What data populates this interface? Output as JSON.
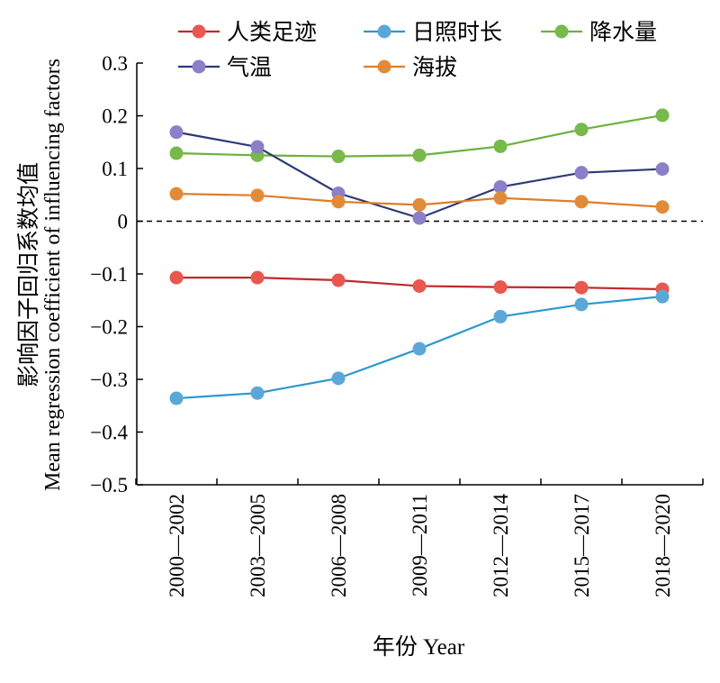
{
  "chart_data": {
    "type": "line",
    "categories": [
      "2000—2002",
      "2003—2005",
      "2006—2008",
      "2009—2011",
      "2012—2014",
      "2015—2017",
      "2018—2020"
    ],
    "xlabel": "年份 Year",
    "ylabel_cn": "影响因子回归系数均值",
    "ylabel_en": "Mean regression coefficient of influencing factors",
    "ylim": [
      -0.5,
      0.3
    ],
    "yticks": [
      0.3,
      0.2,
      0.1,
      0,
      -0.1,
      -0.2,
      -0.3,
      -0.4,
      -0.5
    ],
    "ytick_labels": [
      "0.3",
      "0.2",
      "0.1",
      "0",
      "−0.1",
      "−0.2",
      "−0.3",
      "−0.4",
      "−0.5"
    ],
    "reference_line": {
      "y": 0,
      "style": "dashed"
    },
    "legend_position": "top",
    "grid": false,
    "series": [
      {
        "name": "人类足迹",
        "line_color": "#c0282d",
        "marker_color": "#e8584f",
        "values": [
          -0.107,
          -0.107,
          -0.112,
          -0.123,
          -0.125,
          -0.126,
          -0.129
        ]
      },
      {
        "name": "日照时长",
        "line_color": "#2a98cf",
        "marker_color": "#5ba8d8",
        "values": [
          -0.336,
          -0.326,
          -0.298,
          -0.242,
          -0.181,
          -0.158,
          -0.143
        ]
      },
      {
        "name": "降水量",
        "line_color": "#6ab23e",
        "marker_color": "#78b94b",
        "values": [
          0.129,
          0.125,
          0.123,
          0.125,
          0.142,
          0.174,
          0.201
        ]
      },
      {
        "name": "气温",
        "line_color": "#2c3a78",
        "marker_color": "#8b7fc9",
        "values": [
          0.169,
          0.141,
          0.053,
          0.006,
          0.065,
          0.092,
          0.099
        ]
      },
      {
        "name": "海拔",
        "line_color": "#de7d26",
        "marker_color": "#e18b3a",
        "values": [
          0.052,
          0.049,
          0.037,
          0.031,
          0.044,
          0.037,
          0.027
        ]
      }
    ]
  }
}
